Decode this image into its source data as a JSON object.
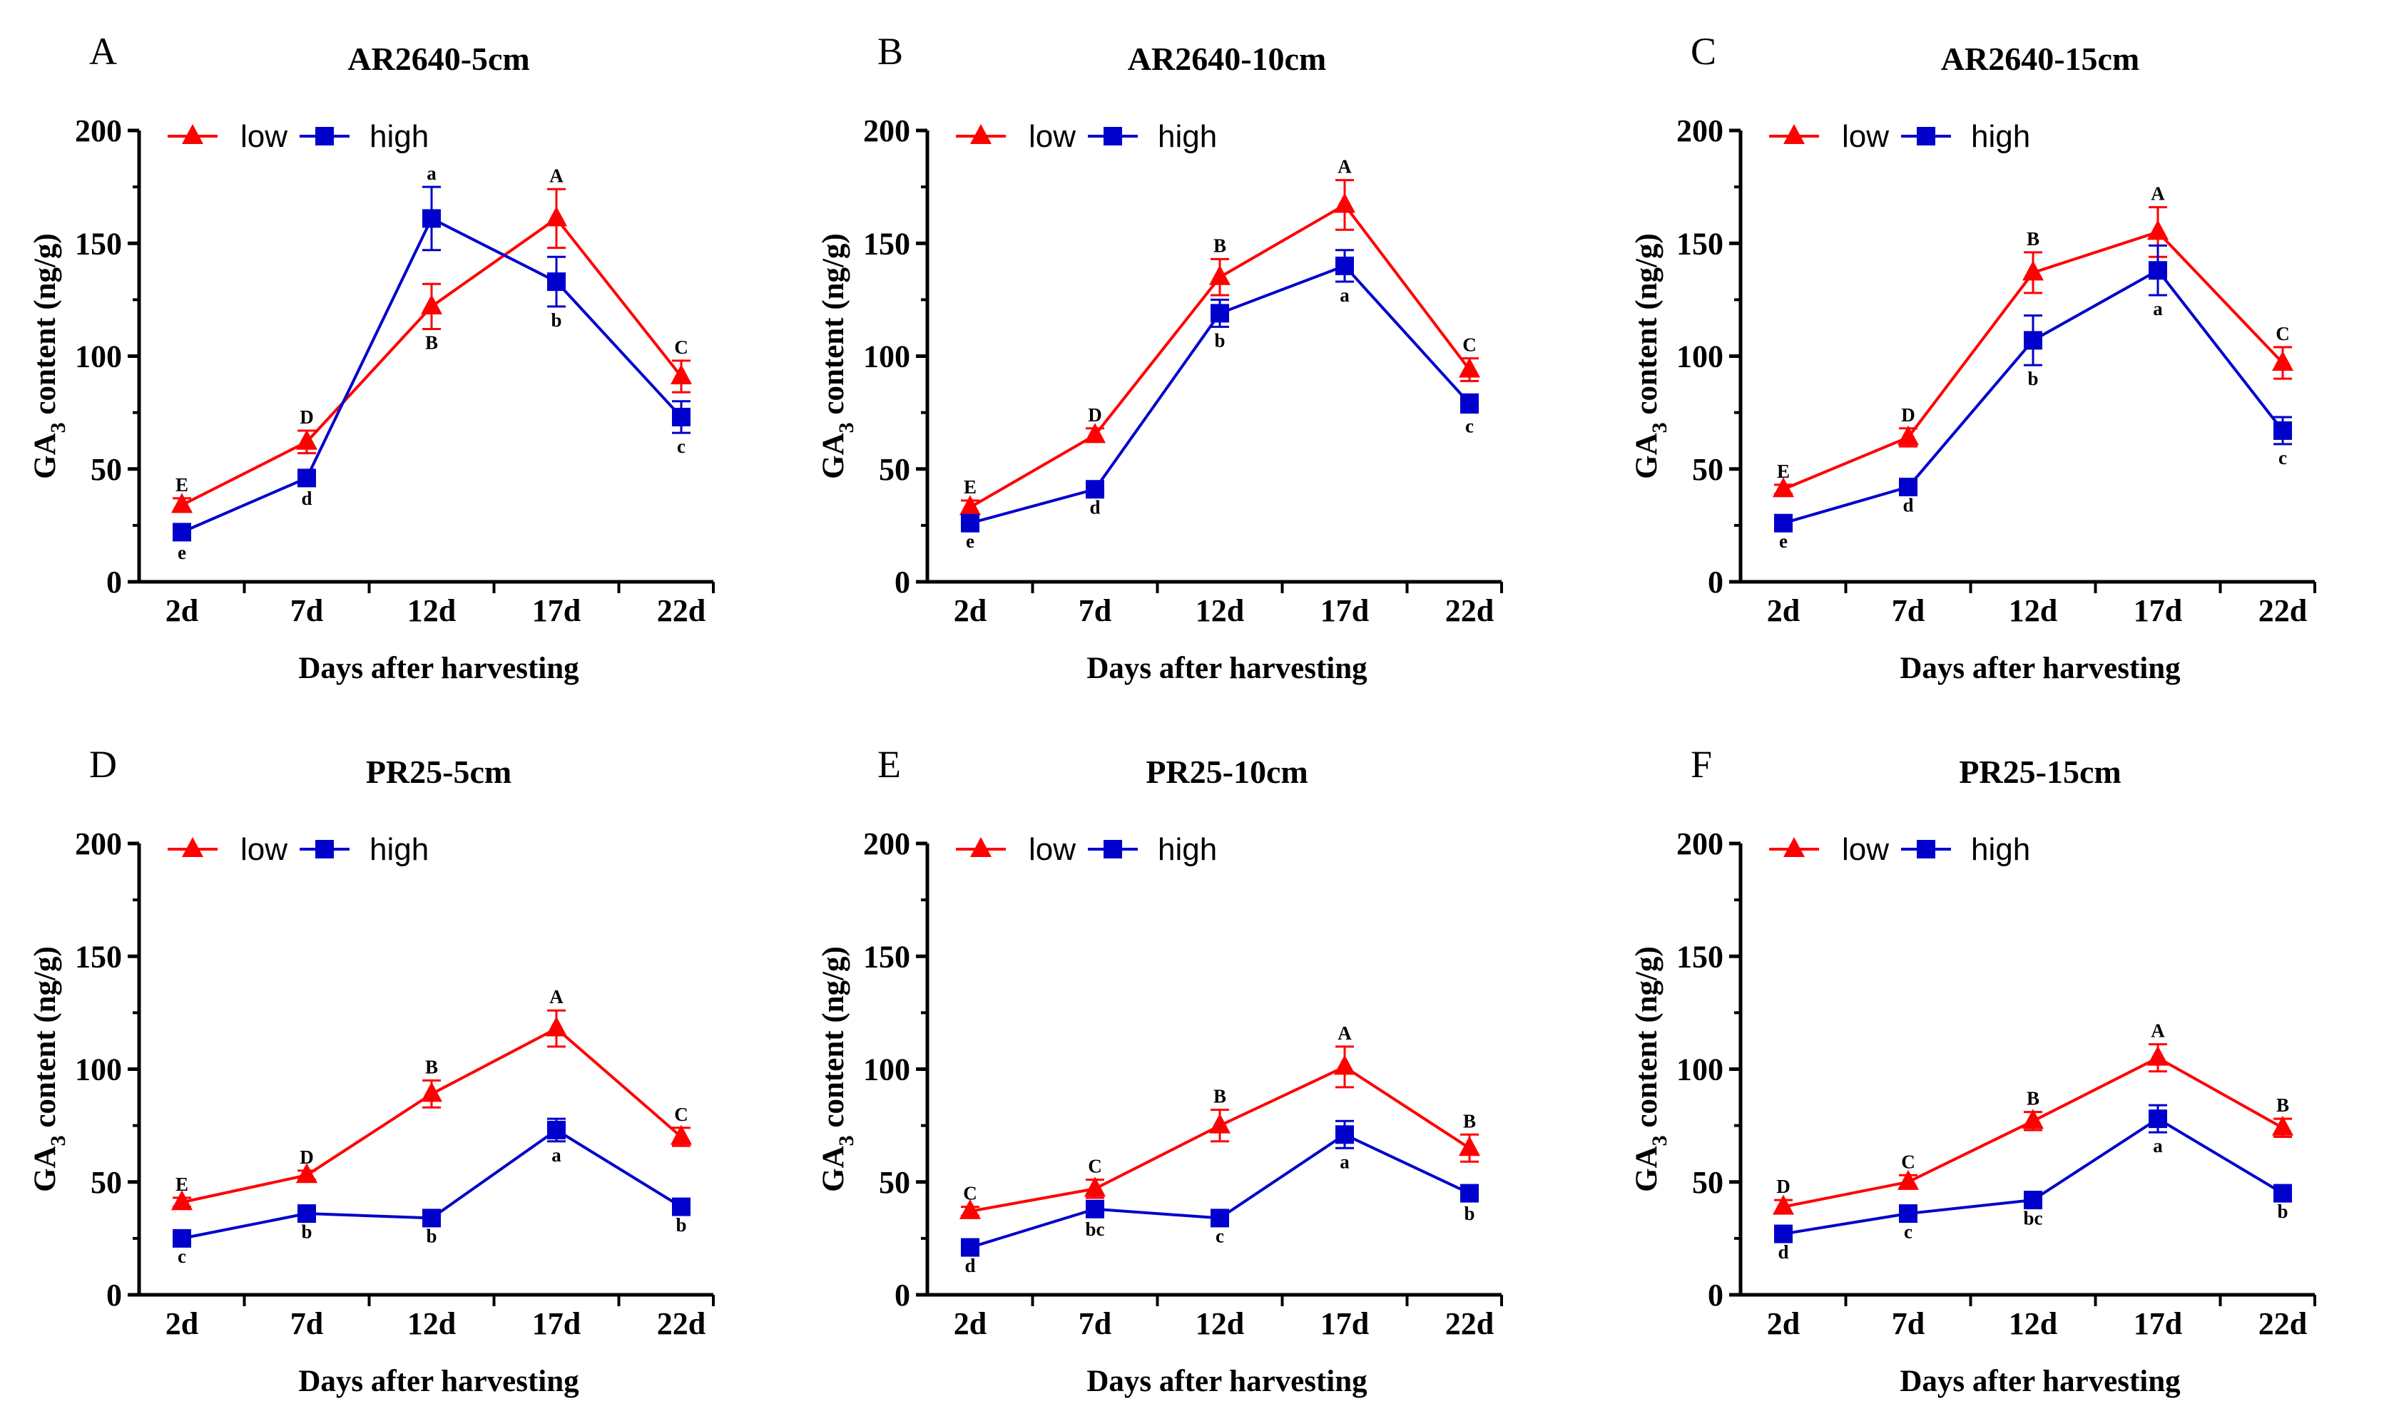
{
  "figure": {
    "x_label": "Days after harvesting",
    "y_label_prefix": "GA",
    "y_label_sub": "3",
    "y_label_suffix": " content (ng/g)"
  },
  "chart_data": [
    {
      "type": "line",
      "panel": "A",
      "title": "AR2640-5cm",
      "categories": [
        "2d",
        "7d",
        "12d",
        "17d",
        "22d"
      ],
      "ylim": [
        0,
        200
      ],
      "yticks": [
        0,
        50,
        100,
        150,
        200
      ],
      "xlabel": "Days after harvesting",
      "ylabel": "GA3 content (ng/g)",
      "legend": "top-left",
      "series": [
        {
          "name": "low",
          "color": "#ff0000",
          "marker": "triangle",
          "values": [
            34,
            62,
            122,
            161,
            91
          ],
          "errors": [
            3,
            5,
            10,
            13,
            7
          ],
          "labels": [
            "E",
            "D",
            "B",
            "A",
            "C"
          ],
          "label_pos": [
            "above",
            "above",
            "below",
            "above",
            "above"
          ]
        },
        {
          "name": "high",
          "color": "#0000cc",
          "marker": "square",
          "values": [
            22,
            46,
            161,
            133,
            73
          ],
          "errors": [
            3,
            3,
            14,
            11,
            7
          ],
          "labels": [
            "e",
            "d",
            "a",
            "b",
            "c"
          ],
          "label_pos": [
            "below",
            "below",
            "above",
            "below",
            "below"
          ]
        }
      ]
    },
    {
      "type": "line",
      "panel": "B",
      "title": "AR2640-10cm",
      "categories": [
        "2d",
        "7d",
        "12d",
        "17d",
        "22d"
      ],
      "ylim": [
        0,
        200
      ],
      "yticks": [
        0,
        50,
        100,
        150,
        200
      ],
      "xlabel": "Days after harvesting",
      "ylabel": "GA3 content (ng/g)",
      "legend": "top-left",
      "series": [
        {
          "name": "low",
          "color": "#ff0000",
          "marker": "triangle",
          "values": [
            33,
            65,
            135,
            167,
            94
          ],
          "errors": [
            3,
            3,
            8,
            11,
            5
          ],
          "labels": [
            "E",
            "D",
            "B",
            "A",
            "C"
          ],
          "label_pos": [
            "above",
            "above",
            "above",
            "above",
            "above"
          ]
        },
        {
          "name": "high",
          "color": "#0000cc",
          "marker": "square",
          "values": [
            26,
            41,
            119,
            140,
            79
          ],
          "errors": [
            2,
            2,
            6,
            7,
            4
          ],
          "labels": [
            "e",
            "d",
            "b",
            "a",
            "c"
          ],
          "label_pos": [
            "below",
            "below",
            "below",
            "below",
            "below"
          ]
        }
      ]
    },
    {
      "type": "line",
      "panel": "C",
      "title": "AR2640-15cm",
      "categories": [
        "2d",
        "7d",
        "12d",
        "17d",
        "22d"
      ],
      "ylim": [
        0,
        200
      ],
      "yticks": [
        0,
        50,
        100,
        150,
        200
      ],
      "xlabel": "Days after harvesting",
      "ylabel": "GA3 content (ng/g)",
      "legend": "top-left",
      "series": [
        {
          "name": "low",
          "color": "#ff0000",
          "marker": "triangle",
          "values": [
            41,
            64,
            137,
            155,
            97
          ],
          "errors": [
            2,
            4,
            9,
            11,
            7
          ],
          "labels": [
            "E",
            "D",
            "B",
            "A",
            "C"
          ],
          "label_pos": [
            "above",
            "above",
            "above",
            "above",
            "above"
          ]
        },
        {
          "name": "high",
          "color": "#0000cc",
          "marker": "square",
          "values": [
            26,
            42,
            107,
            138,
            67
          ],
          "errors": [
            2,
            2,
            11,
            11,
            6
          ],
          "labels": [
            "e",
            "d",
            "b",
            "a",
            "c"
          ],
          "label_pos": [
            "below",
            "below",
            "below",
            "below",
            "below"
          ]
        }
      ]
    },
    {
      "type": "line",
      "panel": "D",
      "title": "PR25-5cm",
      "categories": [
        "2d",
        "7d",
        "12d",
        "17d",
        "22d"
      ],
      "ylim": [
        0,
        200
      ],
      "yticks": [
        0,
        50,
        100,
        150,
        200
      ],
      "xlabel": "Days after harvesting",
      "ylabel": "GA3 content (ng/g)",
      "legend": "top-left",
      "series": [
        {
          "name": "low",
          "color": "#ff0000",
          "marker": "triangle",
          "values": [
            41,
            53,
            89,
            118,
            70
          ],
          "errors": [
            2,
            2,
            6,
            8,
            4
          ],
          "labels": [
            "E",
            "D",
            "B",
            "A",
            "C"
          ],
          "label_pos": [
            "above",
            "above",
            "above",
            "above",
            "above"
          ]
        },
        {
          "name": "high",
          "color": "#0000cc",
          "marker": "square",
          "values": [
            25,
            36,
            34,
            73,
            39
          ],
          "errors": [
            2,
            2,
            2,
            5,
            2
          ],
          "labels": [
            "c",
            "b",
            "b",
            "a",
            "b"
          ],
          "label_pos": [
            "below",
            "below",
            "below",
            "below",
            "below"
          ]
        }
      ]
    },
    {
      "type": "line",
      "panel": "E",
      "title": "PR25-10cm",
      "categories": [
        "2d",
        "7d",
        "12d",
        "17d",
        "22d"
      ],
      "ylim": [
        0,
        200
      ],
      "yticks": [
        0,
        50,
        100,
        150,
        200
      ],
      "xlabel": "Days after harvesting",
      "ylabel": "GA3 content (ng/g)",
      "legend": "top-left",
      "series": [
        {
          "name": "low",
          "color": "#ff0000",
          "marker": "triangle",
          "values": [
            37,
            47,
            75,
            101,
            65
          ],
          "errors": [
            2,
            4,
            7,
            9,
            6
          ],
          "labels": [
            "C",
            "C",
            "B",
            "A",
            "B"
          ],
          "label_pos": [
            "above",
            "above",
            "above",
            "above",
            "above"
          ]
        },
        {
          "name": "high",
          "color": "#0000cc",
          "marker": "square",
          "values": [
            21,
            38,
            34,
            71,
            45
          ],
          "errors": [
            2,
            3,
            2,
            6,
            3
          ],
          "labels": [
            "d",
            "bc",
            "c",
            "a",
            "b"
          ],
          "label_pos": [
            "below",
            "below",
            "below",
            "below",
            "below"
          ]
        }
      ]
    },
    {
      "type": "line",
      "panel": "F",
      "title": "PR25-15cm",
      "categories": [
        "2d",
        "7d",
        "12d",
        "17d",
        "22d"
      ],
      "ylim": [
        0,
        200
      ],
      "yticks": [
        0,
        50,
        100,
        150,
        200
      ],
      "xlabel": "Days after harvesting",
      "ylabel": "GA3 content (ng/g)",
      "legend": "top-left",
      "series": [
        {
          "name": "low",
          "color": "#ff0000",
          "marker": "triangle",
          "values": [
            39,
            50,
            77,
            105,
            74
          ],
          "errors": [
            3,
            3,
            4,
            6,
            4
          ],
          "labels": [
            "D",
            "C",
            "B",
            "A",
            "B"
          ],
          "label_pos": [
            "above",
            "above",
            "above",
            "above",
            "above"
          ]
        },
        {
          "name": "high",
          "color": "#0000cc",
          "marker": "square",
          "values": [
            27,
            36,
            42,
            78,
            45
          ],
          "errors": [
            2,
            2,
            2,
            6,
            2
          ],
          "labels": [
            "d",
            "c",
            "bc",
            "a",
            "b"
          ],
          "label_pos": [
            "below",
            "below",
            "below",
            "below",
            "below"
          ]
        }
      ]
    }
  ]
}
